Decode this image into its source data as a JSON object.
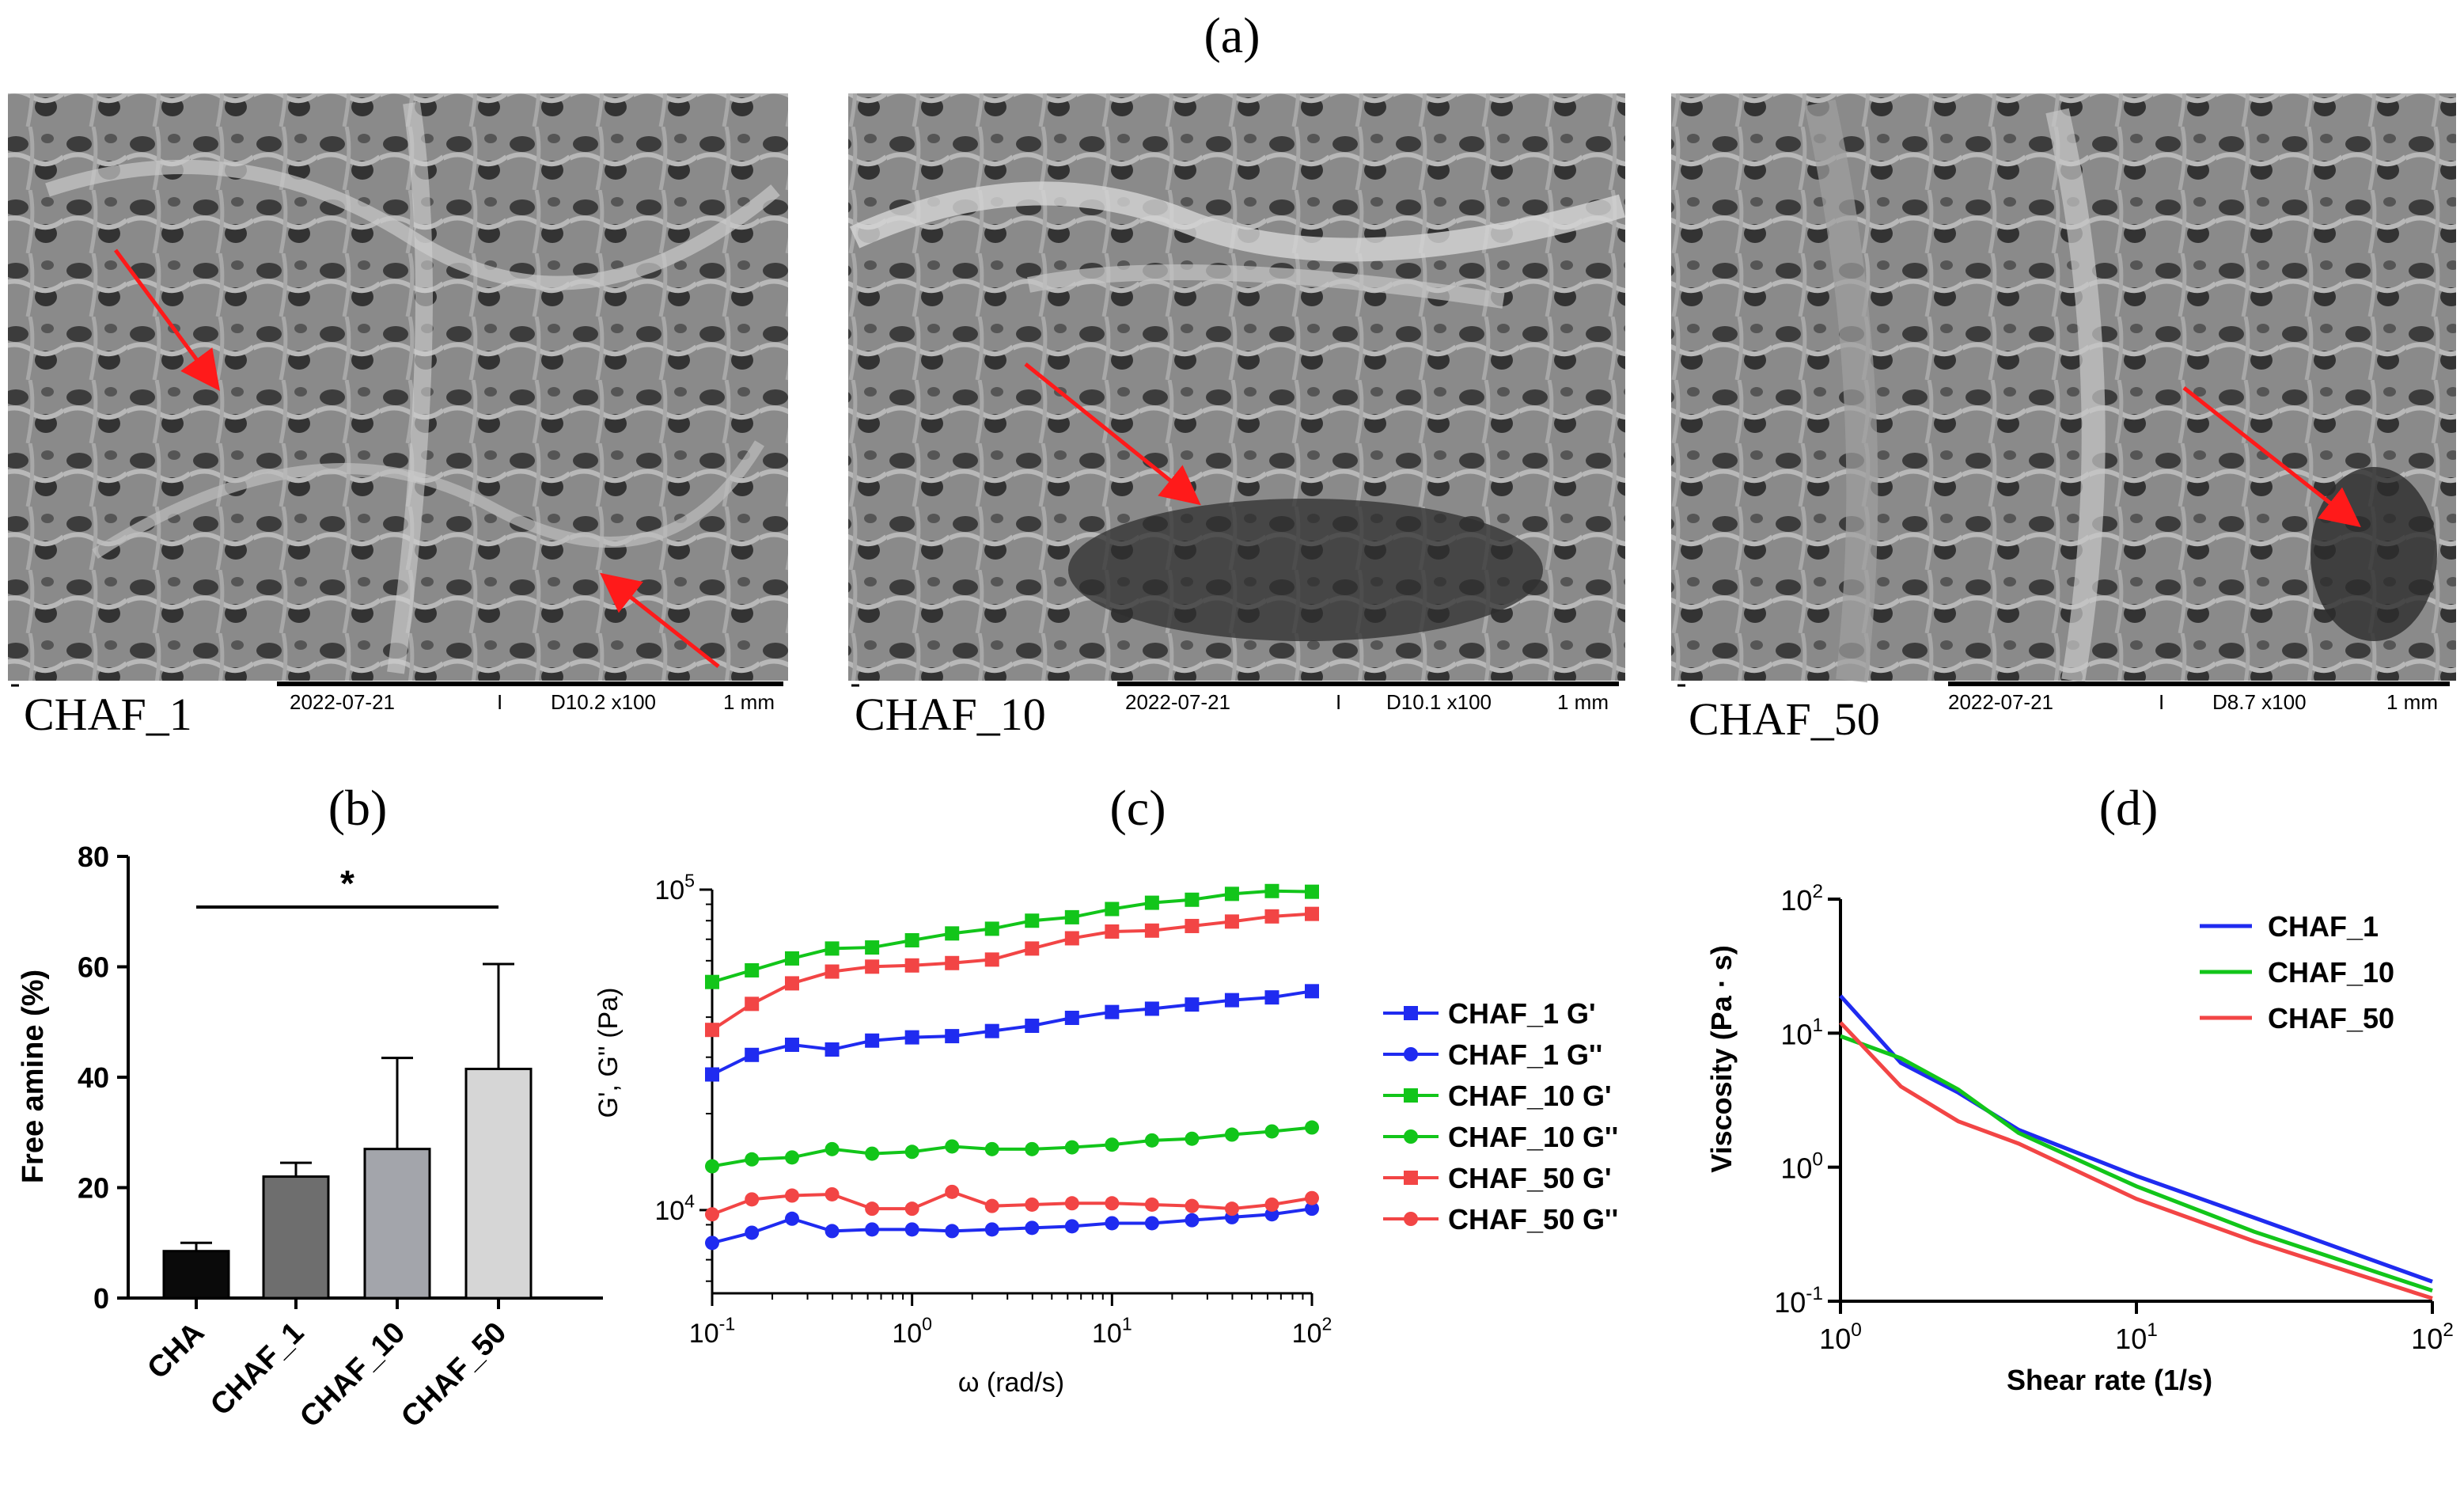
{
  "figure": {
    "panel_a": {
      "label": "(a)",
      "images": [
        {
          "sample": "CHAF_1",
          "date": "2022-07-21",
          "sep": "I",
          "mag": "D10.2 x100",
          "scale": "1 mm"
        },
        {
          "sample": "CHAF_10",
          "date": "2022-07-21",
          "sep": "I",
          "mag": "D10.1 x100",
          "scale": "1 mm"
        },
        {
          "sample": "CHAF_50",
          "date": "2022-07-21",
          "sep": "I",
          "mag": "D8.7  x100",
          "scale": "1 mm"
        }
      ]
    },
    "colors": {
      "blue": "#1f2bf0",
      "green": "#12c51a",
      "red": "#f24545"
    }
  },
  "chart_data": [
    {
      "panel": "(b)",
      "type": "bar",
      "title": "",
      "ylabel": "Free amine (%)",
      "xlabel": "",
      "ylim": [
        0,
        80
      ],
      "yticks": [
        "0",
        "20",
        "40",
        "60",
        "80"
      ],
      "categories": [
        "CHA",
        "CHAF_1",
        "CHAF_10",
        "CHAF_50"
      ],
      "values": [
        8.5,
        22,
        27,
        41.5
      ],
      "errors": [
        1.5,
        2.5,
        16.5,
        19
      ],
      "bar_colors": [
        "#0a0a0a",
        "#6e6e6e",
        "#a3a5ab",
        "#d6d6d6"
      ],
      "significance": {
        "from": "CHA",
        "to": "CHAF_50",
        "label": "*"
      }
    },
    {
      "panel": "(c)",
      "type": "line",
      "title": "",
      "xlabel": "ω (rad/s)",
      "ylabel": "G', G'' (Pa)",
      "xscale": "log",
      "yscale": "log",
      "xlim": [
        0.1,
        100
      ],
      "ylim": [
        5500,
        100000
      ],
      "xtick_base": [
        "10",
        "10",
        "10",
        "10"
      ],
      "xtick_exp": [
        "-1",
        "0",
        "1",
        "2"
      ],
      "ytick_base": [
        "10",
        "10"
      ],
      "ytick_exp": [
        "4",
        "5"
      ],
      "x": [
        0.1,
        0.158,
        0.251,
        0.398,
        0.631,
        1.0,
        1.585,
        2.512,
        3.981,
        6.31,
        10.0,
        15.85,
        25.12,
        39.81,
        63.1,
        100.0
      ],
      "legend": "right",
      "series": [
        {
          "name": "CHAF_1 G'",
          "color": "#1f2bf0",
          "marker": "square",
          "values": [
            26500,
            30500,
            32800,
            31700,
            33800,
            34600,
            34900,
            36200,
            37600,
            39800,
            41500,
            42500,
            43800,
            45200,
            46100,
            48200
          ]
        },
        {
          "name": "CHAF_1 G''",
          "color": "#1f2bf0",
          "marker": "circle",
          "values": [
            7900,
            8500,
            9400,
            8600,
            8700,
            8700,
            8600,
            8700,
            8800,
            8900,
            9100,
            9100,
            9300,
            9500,
            9700,
            10100
          ]
        },
        {
          "name": "CHAF_10 G'",
          "color": "#12c51a",
          "marker": "square",
          "values": [
            51500,
            56000,
            61000,
            65500,
            66000,
            69500,
            73000,
            75500,
            80000,
            82000,
            87000,
            91000,
            93000,
            97000,
            99000,
            98500
          ]
        },
        {
          "name": "CHAF_10 G''",
          "color": "#12c51a",
          "marker": "circle",
          "values": [
            13700,
            14400,
            14600,
            15500,
            15000,
            15200,
            15800,
            15500,
            15500,
            15700,
            16000,
            16500,
            16700,
            17200,
            17600,
            18100
          ]
        },
        {
          "name": "CHAF_50 G'",
          "color": "#f24545",
          "marker": "square",
          "values": [
            36500,
            44000,
            51000,
            55500,
            57500,
            58000,
            59000,
            60500,
            65500,
            70500,
            74000,
            74500,
            77000,
            79500,
            82500,
            84000
          ]
        },
        {
          "name": "CHAF_50 G''",
          "color": "#f24545",
          "marker": "circle",
          "values": [
            9700,
            10800,
            11100,
            11200,
            10100,
            10100,
            11400,
            10300,
            10400,
            10500,
            10500,
            10400,
            10300,
            10100,
            10400,
            10900
          ]
        }
      ]
    },
    {
      "panel": "(d)",
      "type": "line",
      "title": "",
      "xlabel": "Shear rate (1/s)",
      "ylabel": "Viscosity (Pa · s)",
      "xscale": "log",
      "yscale": "log",
      "xlim": [
        1,
        100
      ],
      "ylim": [
        0.1,
        100
      ],
      "xtick_base": [
        "10",
        "10",
        "10"
      ],
      "xtick_exp": [
        "0",
        "1",
        "2"
      ],
      "ytick_base": [
        "10",
        "10",
        "10",
        "10"
      ],
      "ytick_exp": [
        "-1",
        "0",
        "1",
        "2"
      ],
      "legend": "top-right",
      "series": [
        {
          "name": "CHAF_1",
          "color": "#1f2bf0",
          "x": [
            1,
            1.6,
            2.5,
            4,
            10,
            25,
            100
          ],
          "values": [
            19,
            6.0,
            3.6,
            1.9,
            0.86,
            0.42,
            0.14
          ]
        },
        {
          "name": "CHAF_10",
          "color": "#12c51a",
          "x": [
            1,
            1.6,
            2.5,
            4,
            10,
            25,
            100
          ],
          "values": [
            9.5,
            6.5,
            3.8,
            1.8,
            0.72,
            0.33,
            0.12
          ]
        },
        {
          "name": "CHAF_50",
          "color": "#f24545",
          "x": [
            1,
            1.6,
            2.5,
            4,
            10,
            25,
            100
          ],
          "values": [
            12,
            4.0,
            2.2,
            1.5,
            0.58,
            0.28,
            0.105
          ]
        }
      ]
    }
  ]
}
